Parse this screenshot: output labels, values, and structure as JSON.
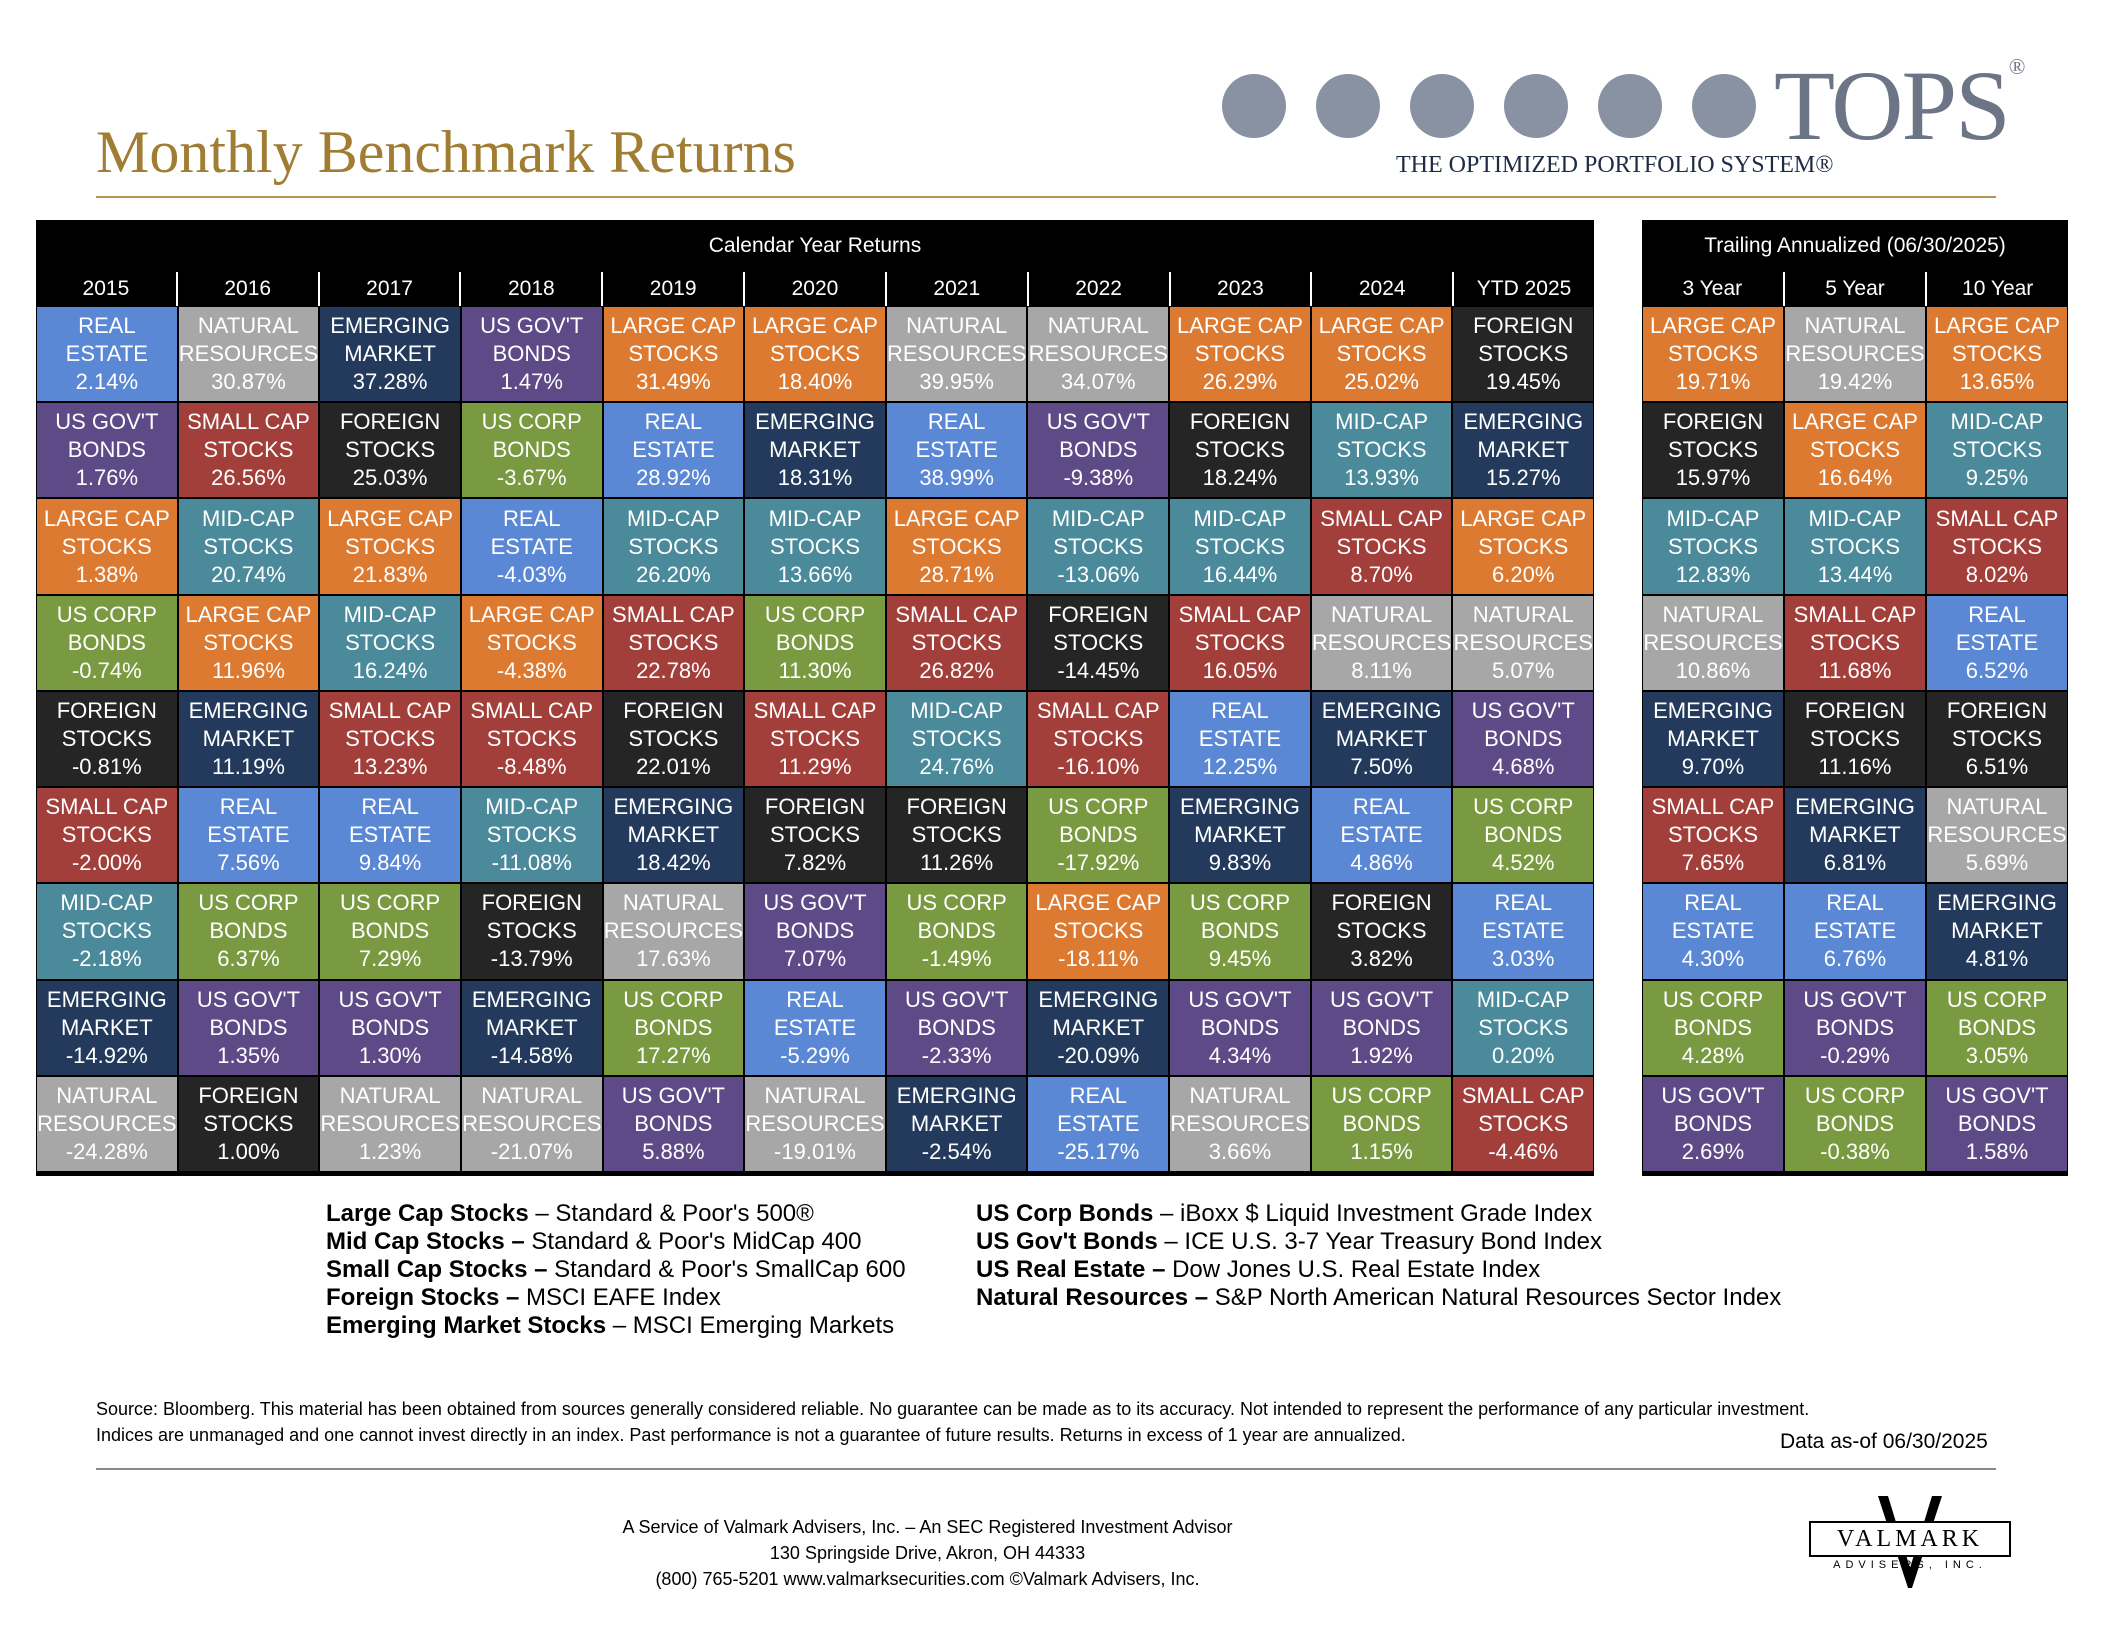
{
  "title": "Monthly Benchmark Returns",
  "logo": {
    "word": "TOPS",
    "reg": "®",
    "subtitle": "THE OPTIMIZED PORTFOLIO SYSTEM®"
  },
  "calendar": {
    "title": "Calendar Year Returns",
    "years": [
      "2015",
      "2016",
      "2017",
      "2018",
      "2019",
      "2020",
      "2021",
      "2022",
      "2023",
      "2024",
      "YTD 2025"
    ],
    "columns": [
      [
        [
          "REAL",
          "ESTATE",
          "2.14%",
          "re"
        ],
        [
          "US GOV'T",
          "BONDS",
          "1.76%",
          "gov"
        ],
        [
          "LARGE CAP",
          "STOCKS",
          "1.38%",
          "lc"
        ],
        [
          "US CORP",
          "BONDS",
          "-0.74%",
          "corp"
        ],
        [
          "FOREIGN",
          "STOCKS",
          "-0.81%",
          "fs"
        ],
        [
          "SMALL CAP",
          "STOCKS",
          "-2.00%",
          "sc"
        ],
        [
          "MID-CAP",
          "STOCKS",
          "-2.18%",
          "mc"
        ],
        [
          "EMERGING",
          "MARKET",
          "-14.92%",
          "em"
        ],
        [
          "NATURAL",
          "RESOURCES",
          "-24.28%",
          "nr"
        ]
      ],
      [
        [
          "NATURAL",
          "RESOURCES",
          "30.87%",
          "nr"
        ],
        [
          "SMALL CAP",
          "STOCKS",
          "26.56%",
          "sc"
        ],
        [
          "MID-CAP",
          "STOCKS",
          "20.74%",
          "mc"
        ],
        [
          "LARGE CAP",
          "STOCKS",
          "11.96%",
          "lc"
        ],
        [
          "EMERGING",
          "MARKET",
          "11.19%",
          "em"
        ],
        [
          "REAL",
          "ESTATE",
          "7.56%",
          "re"
        ],
        [
          "US CORP",
          "BONDS",
          "6.37%",
          "corp"
        ],
        [
          "US GOV'T",
          "BONDS",
          "1.35%",
          "gov"
        ],
        [
          "FOREIGN",
          "STOCKS",
          "1.00%",
          "fs"
        ]
      ],
      [
        [
          "EMERGING",
          "MARKET",
          "37.28%",
          "em"
        ],
        [
          "FOREIGN",
          "STOCKS",
          "25.03%",
          "fs"
        ],
        [
          "LARGE CAP",
          "STOCKS",
          "21.83%",
          "lc"
        ],
        [
          "MID-CAP",
          "STOCKS",
          "16.24%",
          "mc"
        ],
        [
          "SMALL CAP",
          "STOCKS",
          "13.23%",
          "sc"
        ],
        [
          "REAL",
          "ESTATE",
          "9.84%",
          "re"
        ],
        [
          "US CORP",
          "BONDS",
          "7.29%",
          "corp"
        ],
        [
          "US GOV'T",
          "BONDS",
          "1.30%",
          "gov"
        ],
        [
          "NATURAL",
          "RESOURCES",
          "1.23%",
          "nr"
        ]
      ],
      [
        [
          "US GOV'T",
          "BONDS",
          "1.47%",
          "gov"
        ],
        [
          "US CORP",
          "BONDS",
          "-3.67%",
          "corp"
        ],
        [
          "REAL",
          "ESTATE",
          "-4.03%",
          "re"
        ],
        [
          "LARGE CAP",
          "STOCKS",
          "-4.38%",
          "lc"
        ],
        [
          "SMALL CAP",
          "STOCKS",
          "-8.48%",
          "sc"
        ],
        [
          "MID-CAP",
          "STOCKS",
          "-11.08%",
          "mc"
        ],
        [
          "FOREIGN",
          "STOCKS",
          "-13.79%",
          "fs"
        ],
        [
          "EMERGING",
          "MARKET",
          "-14.58%",
          "em"
        ],
        [
          "NATURAL",
          "RESOURCES",
          "-21.07%",
          "nr"
        ]
      ],
      [
        [
          "LARGE CAP",
          "STOCKS",
          "31.49%",
          "lc"
        ],
        [
          "REAL",
          "ESTATE",
          "28.92%",
          "re"
        ],
        [
          "MID-CAP",
          "STOCKS",
          "26.20%",
          "mc"
        ],
        [
          "SMALL CAP",
          "STOCKS",
          "22.78%",
          "sc"
        ],
        [
          "FOREIGN",
          "STOCKS",
          "22.01%",
          "fs"
        ],
        [
          "EMERGING",
          "MARKET",
          "18.42%",
          "em"
        ],
        [
          "NATURAL",
          "RESOURCES",
          "17.63%",
          "nr"
        ],
        [
          "US CORP",
          "BONDS",
          "17.27%",
          "corp"
        ],
        [
          "US GOV'T",
          "BONDS",
          "5.88%",
          "gov"
        ]
      ],
      [
        [
          "LARGE CAP",
          "STOCKS",
          "18.40%",
          "lc"
        ],
        [
          "EMERGING",
          "MARKET",
          "18.31%",
          "em"
        ],
        [
          "MID-CAP",
          "STOCKS",
          "13.66%",
          "mc"
        ],
        [
          "US CORP",
          "BONDS",
          "11.30%",
          "corp"
        ],
        [
          "SMALL CAP",
          "STOCKS",
          "11.29%",
          "sc"
        ],
        [
          "FOREIGN",
          "STOCKS",
          "7.82%",
          "fs"
        ],
        [
          "US GOV'T",
          "BONDS",
          "7.07%",
          "gov"
        ],
        [
          "REAL",
          "ESTATE",
          "-5.29%",
          "re"
        ],
        [
          "NATURAL",
          "RESOURCES",
          "-19.01%",
          "nr"
        ]
      ],
      [
        [
          "NATURAL",
          "RESOURCES",
          "39.95%",
          "nr"
        ],
        [
          "REAL",
          "ESTATE",
          "38.99%",
          "re"
        ],
        [
          "LARGE CAP",
          "STOCKS",
          "28.71%",
          "lc"
        ],
        [
          "SMALL CAP",
          "STOCKS",
          "26.82%",
          "sc"
        ],
        [
          "MID-CAP",
          "STOCKS",
          "24.76%",
          "mc"
        ],
        [
          "FOREIGN",
          "STOCKS",
          "11.26%",
          "fs"
        ],
        [
          "US CORP",
          "BONDS",
          "-1.49%",
          "corp"
        ],
        [
          "US GOV'T",
          "BONDS",
          "-2.33%",
          "gov"
        ],
        [
          "EMERGING",
          "MARKET",
          "-2.54%",
          "em"
        ]
      ],
      [
        [
          "NATURAL",
          "RESOURCES",
          "34.07%",
          "nr"
        ],
        [
          "US GOV'T",
          "BONDS",
          "-9.38%",
          "gov"
        ],
        [
          "MID-CAP",
          "STOCKS",
          "-13.06%",
          "mc"
        ],
        [
          "FOREIGN",
          "STOCKS",
          "-14.45%",
          "fs"
        ],
        [
          "SMALL CAP",
          "STOCKS",
          "-16.10%",
          "sc"
        ],
        [
          "US CORP",
          "BONDS",
          "-17.92%",
          "corp"
        ],
        [
          "LARGE CAP",
          "STOCKS",
          "-18.11%",
          "lc"
        ],
        [
          "EMERGING",
          "MARKET",
          "-20.09%",
          "em"
        ],
        [
          "REAL",
          "ESTATE",
          "-25.17%",
          "re"
        ]
      ],
      [
        [
          "LARGE CAP",
          "STOCKS",
          "26.29%",
          "lc"
        ],
        [
          "FOREIGN",
          "STOCKS",
          "18.24%",
          "fs"
        ],
        [
          "MID-CAP",
          "STOCKS",
          "16.44%",
          "mc"
        ],
        [
          "SMALL CAP",
          "STOCKS",
          "16.05%",
          "sc"
        ],
        [
          "REAL",
          "ESTATE",
          "12.25%",
          "re"
        ],
        [
          "EMERGING",
          "MARKET",
          "9.83%",
          "em"
        ],
        [
          "US CORP",
          "BONDS",
          "9.45%",
          "corp"
        ],
        [
          "US GOV'T",
          "BONDS",
          "4.34%",
          "gov"
        ],
        [
          "NATURAL",
          "RESOURCES",
          "3.66%",
          "nr"
        ]
      ],
      [
        [
          "LARGE CAP",
          "STOCKS",
          "25.02%",
          "lc"
        ],
        [
          "MID-CAP",
          "STOCKS",
          "13.93%",
          "mc"
        ],
        [
          "SMALL CAP",
          "STOCKS",
          "8.70%",
          "sc"
        ],
        [
          "NATURAL",
          "RESOURCES",
          "8.11%",
          "nr"
        ],
        [
          "EMERGING",
          "MARKET",
          "7.50%",
          "em"
        ],
        [
          "REAL",
          "ESTATE",
          "4.86%",
          "re"
        ],
        [
          "FOREIGN",
          "STOCKS",
          "3.82%",
          "fs"
        ],
        [
          "US GOV'T",
          "BONDS",
          "1.92%",
          "gov"
        ],
        [
          "US CORP",
          "BONDS",
          "1.15%",
          "corp"
        ]
      ],
      [
        [
          "FOREIGN",
          "STOCKS",
          "19.45%",
          "fs"
        ],
        [
          "EMERGING",
          "MARKET",
          "15.27%",
          "em"
        ],
        [
          "LARGE CAP",
          "STOCKS",
          "6.20%",
          "lc"
        ],
        [
          "NATURAL",
          "RESOURCES",
          "5.07%",
          "nr"
        ],
        [
          "US GOV'T",
          "BONDS",
          "4.68%",
          "gov"
        ],
        [
          "US CORP",
          "BONDS",
          "4.52%",
          "corp"
        ],
        [
          "REAL",
          "ESTATE",
          "3.03%",
          "re"
        ],
        [
          "MID-CAP",
          "STOCKS",
          "0.20%",
          "mc"
        ],
        [
          "SMALL CAP",
          "STOCKS",
          "-4.46%",
          "sc"
        ]
      ]
    ]
  },
  "trailing": {
    "title": "Trailing Annualized (06/30/2025)",
    "years": [
      "3 Year",
      "5 Year",
      "10 Year"
    ],
    "columns": [
      [
        [
          "LARGE CAP",
          "STOCKS",
          "19.71%",
          "lc"
        ],
        [
          "FOREIGN",
          "STOCKS",
          "15.97%",
          "fs"
        ],
        [
          "MID-CAP",
          "STOCKS",
          "12.83%",
          "mc"
        ],
        [
          "NATURAL",
          "RESOURCES",
          "10.86%",
          "nr"
        ],
        [
          "EMERGING",
          "MARKET",
          "9.70%",
          "em"
        ],
        [
          "SMALL CAP",
          "STOCKS",
          "7.65%",
          "sc"
        ],
        [
          "REAL",
          "ESTATE",
          "4.30%",
          "re"
        ],
        [
          "US CORP",
          "BONDS",
          "4.28%",
          "corp"
        ],
        [
          "US GOV'T",
          "BONDS",
          "2.69%",
          "gov"
        ]
      ],
      [
        [
          "NATURAL",
          "RESOURCES",
          "19.42%",
          "nr"
        ],
        [
          "LARGE CAP",
          "STOCKS",
          "16.64%",
          "lc"
        ],
        [
          "MID-CAP",
          "STOCKS",
          "13.44%",
          "mc"
        ],
        [
          "SMALL CAP",
          "STOCKS",
          "11.68%",
          "sc"
        ],
        [
          "FOREIGN",
          "STOCKS",
          "11.16%",
          "fs"
        ],
        [
          "EMERGING",
          "MARKET",
          "6.81%",
          "em"
        ],
        [
          "REAL",
          "ESTATE",
          "6.76%",
          "re"
        ],
        [
          "US GOV'T",
          "BONDS",
          "-0.29%",
          "gov"
        ],
        [
          "US CORP",
          "BONDS",
          "-0.38%",
          "corp"
        ]
      ],
      [
        [
          "LARGE CAP",
          "STOCKS",
          "13.65%",
          "lc"
        ],
        [
          "MID-CAP",
          "STOCKS",
          "9.25%",
          "mc"
        ],
        [
          "SMALL CAP",
          "STOCKS",
          "8.02%",
          "sc"
        ],
        [
          "REAL",
          "ESTATE",
          "6.52%",
          "re"
        ],
        [
          "FOREIGN",
          "STOCKS",
          "6.51%",
          "fs"
        ],
        [
          "NATURAL",
          "RESOURCES",
          "5.69%",
          "nr"
        ],
        [
          "EMERGING",
          "MARKET",
          "4.81%",
          "em"
        ],
        [
          "US CORP",
          "BONDS",
          "3.05%",
          "corp"
        ],
        [
          "US GOV'T",
          "BONDS",
          "1.58%",
          "gov"
        ]
      ]
    ]
  },
  "colors": {
    "lc": "#dd7a31",
    "mc": "#4a8a9a",
    "sc": "#a23f3a",
    "fs": "#252525",
    "em": "#233a5c",
    "corp": "#7a9a42",
    "gov": "#5e4a86",
    "re": "#5a88d4",
    "nr": "#a7a7a7"
  },
  "legend_left": [
    [
      "Large Cap Stocks",
      " – Standard & Poor's 500®"
    ],
    [
      "Mid Cap Stocks –",
      " Standard & Poor's MidCap 400"
    ],
    [
      "Small Cap Stocks –",
      " Standard & Poor's SmallCap 600"
    ],
    [
      "Foreign Stocks –",
      " MSCI EAFE Index"
    ],
    [
      "Emerging Market Stocks",
      " – MSCI Emerging Markets"
    ]
  ],
  "legend_right": [
    [
      "US Corp Bonds",
      " – iBoxx $ Liquid Investment Grade Index"
    ],
    [
      "US Gov't Bonds",
      " – ICE U.S. 3-7 Year Treasury Bond Index"
    ],
    [
      "US Real Estate –",
      " Dow Jones U.S. Real Estate Index"
    ],
    [
      "Natural Resources –",
      " S&P North American Natural Resources Sector Index"
    ]
  ],
  "source_lines": [
    "Source: Bloomberg. This material has been obtained from sources generally considered reliable. No guarantee can be made as to its accuracy. Not intended to represent the performance of any particular investment.",
    "Indices are unmanaged and one cannot invest directly in an index. Past performance is not a guarantee of future results.  Returns in excess of 1 year are annualized."
  ],
  "as_of": "Data as-of 06/30/2025",
  "footer": [
    "A Service of Valmark Advisers, Inc. – An SEC Registered Investment Advisor",
    "130 Springside Drive, Akron, OH  44333",
    "(800) 765-5201  www.valmarksecurities.com  ©Valmark Advisers, Inc."
  ],
  "valmark": {
    "name": "VALMARK",
    "sub": "ADVISERS, INC."
  }
}
